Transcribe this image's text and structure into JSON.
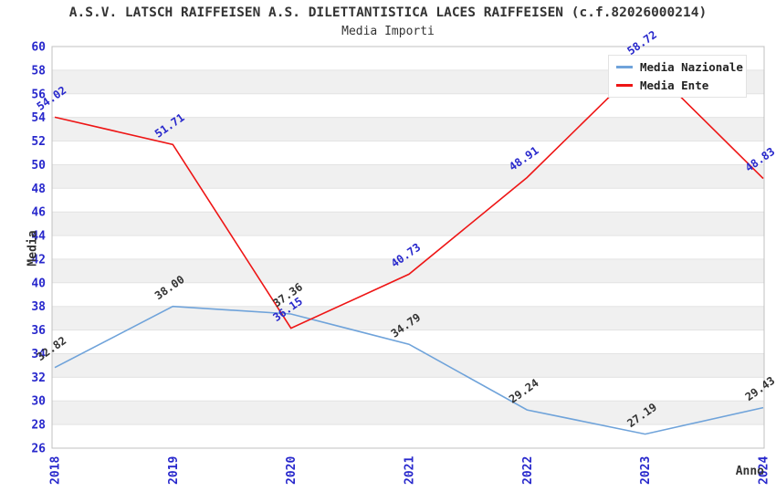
{
  "header": {
    "title": "A.S.V. LATSCH RAIFFEISEN A.S. DILETTANTISTICA LACES RAIFFEISEN (c.f.82026000214)",
    "subtitle": "Media Importi"
  },
  "chart_data": {
    "type": "line",
    "title": "A.S.V. LATSCH RAIFFEISEN A.S. DILETTANTISTICA LACES RAIFFEISEN (c.f.82026000214)",
    "subtitle": "Media Importi",
    "xlabel": "Anno",
    "ylabel": "Media",
    "x": [
      2018,
      2019,
      2020,
      2021,
      2022,
      2023,
      2024
    ],
    "series": [
      {
        "name": "Media Nazionale",
        "color": "#6fa3da",
        "label_color": "#333333",
        "values": [
          32.82,
          38.0,
          37.36,
          34.79,
          29.24,
          27.19,
          29.43
        ]
      },
      {
        "name": "Media Ente",
        "color": "#ee1515",
        "label_color": "#2828cc",
        "values": [
          54.02,
          51.71,
          36.15,
          40.73,
          48.91,
          58.72,
          48.83
        ]
      }
    ],
    "ylim": [
      26,
      60
    ],
    "ytick_step": 2,
    "grid": "alternating-bands",
    "legend_position": "top-right",
    "colors": {
      "axis_tick": "#2828cc",
      "band_gray": "#f0f0f0",
      "grid_line": "#e3e3e3",
      "plot_border": "#c0c0c0",
      "title_text": "#333333"
    }
  }
}
